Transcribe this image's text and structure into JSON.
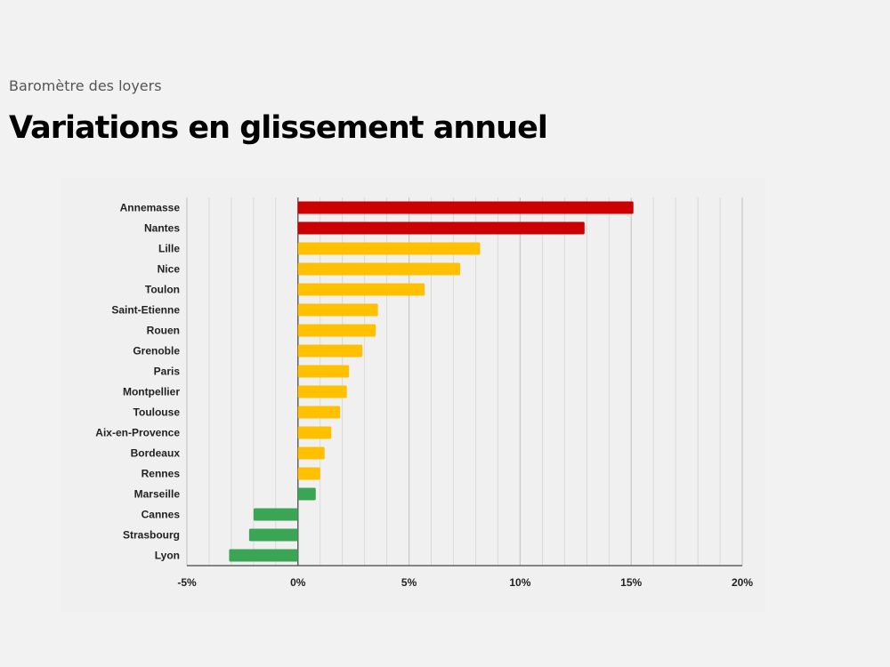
{
  "header": {
    "subtitle": "Baromètre des loyers",
    "title": "Variations en glissement annuel"
  },
  "colors": {
    "high": "#cc0000",
    "medium": "#ffc000",
    "low": "#3aa655",
    "grid": "#d4d4d4",
    "axis": "#444444",
    "background": "#f2f2f2"
  },
  "chart_data": {
    "type": "bar",
    "orientation": "horizontal",
    "categories": [
      "Annemasse",
      "Nantes",
      "Lille",
      "Nice",
      "Toulon",
      "Saint-Etienne",
      "Rouen",
      "Grenoble",
      "Paris",
      "Montpellier",
      "Toulouse",
      "Aix-en-Provence",
      "Bordeaux",
      "Rennes",
      "Marseille",
      "Cannes",
      "Strasbourg",
      "Lyon"
    ],
    "values": [
      15.1,
      12.9,
      8.2,
      7.3,
      5.7,
      3.6,
      3.5,
      2.9,
      2.3,
      2.2,
      1.9,
      1.5,
      1.2,
      1.0,
      0.8,
      -2.0,
      -2.2,
      -3.1
    ],
    "bar_colors": [
      "#cc0000",
      "#cc0000",
      "#ffc000",
      "#ffc000",
      "#ffc000",
      "#ffc000",
      "#ffc000",
      "#ffc000",
      "#ffc000",
      "#ffc000",
      "#ffc000",
      "#ffc000",
      "#ffc000",
      "#ffc000",
      "#3aa655",
      "#3aa655",
      "#3aa655",
      "#3aa655"
    ],
    "xlim": [
      -5,
      20
    ],
    "x_ticks": [
      -5,
      0,
      5,
      10,
      15,
      20
    ],
    "x_tick_labels": [
      "-5%",
      "0%",
      "5%",
      "10%",
      "15%",
      "20%"
    ],
    "grid": true,
    "legend": "none"
  }
}
